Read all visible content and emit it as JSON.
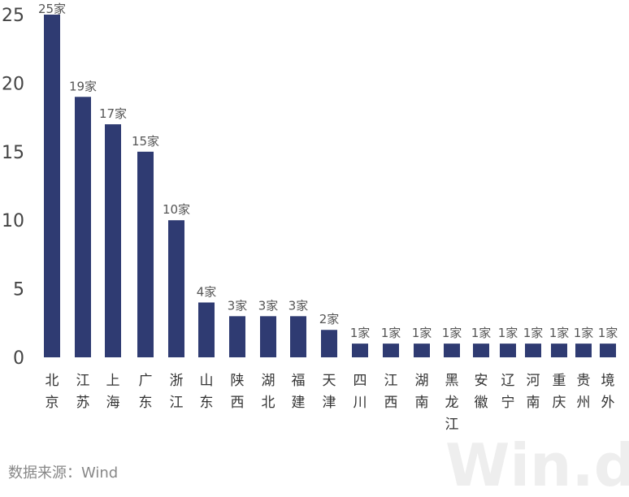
{
  "chart_data": {
    "type": "bar",
    "categories": [
      "北京",
      "江苏",
      "上海",
      "广东",
      "浙江",
      "山东",
      "陕西",
      "湖北",
      "福建",
      "天津",
      "四川",
      "江西",
      "湖南",
      "黑龙江",
      "安徽",
      "辽宁",
      "河南",
      "重庆",
      "贵州",
      "境外"
    ],
    "values": [
      25,
      19,
      17,
      15,
      10,
      4,
      3,
      3,
      3,
      2,
      1,
      1,
      1,
      1,
      1,
      1,
      1,
      1,
      1,
      1
    ],
    "data_labels": [
      "25家",
      "19家",
      "17家",
      "15家",
      "10家",
      "4家",
      "3家",
      "3家",
      "3家",
      "2家",
      "1家",
      "1家",
      "1家",
      "1家",
      "1家",
      "1家",
      "1家",
      "1家",
      "1家",
      "1家"
    ],
    "y_ticks": [
      "0",
      "5",
      "10",
      "15",
      "20",
      "25"
    ],
    "ylim": [
      0,
      25
    ],
    "title": "",
    "xlabel": "",
    "ylabel": "",
    "grid": false,
    "bar_color": "#2f3b72"
  },
  "source_text": "数据来源：Wind",
  "watermark_text": "Win.d"
}
